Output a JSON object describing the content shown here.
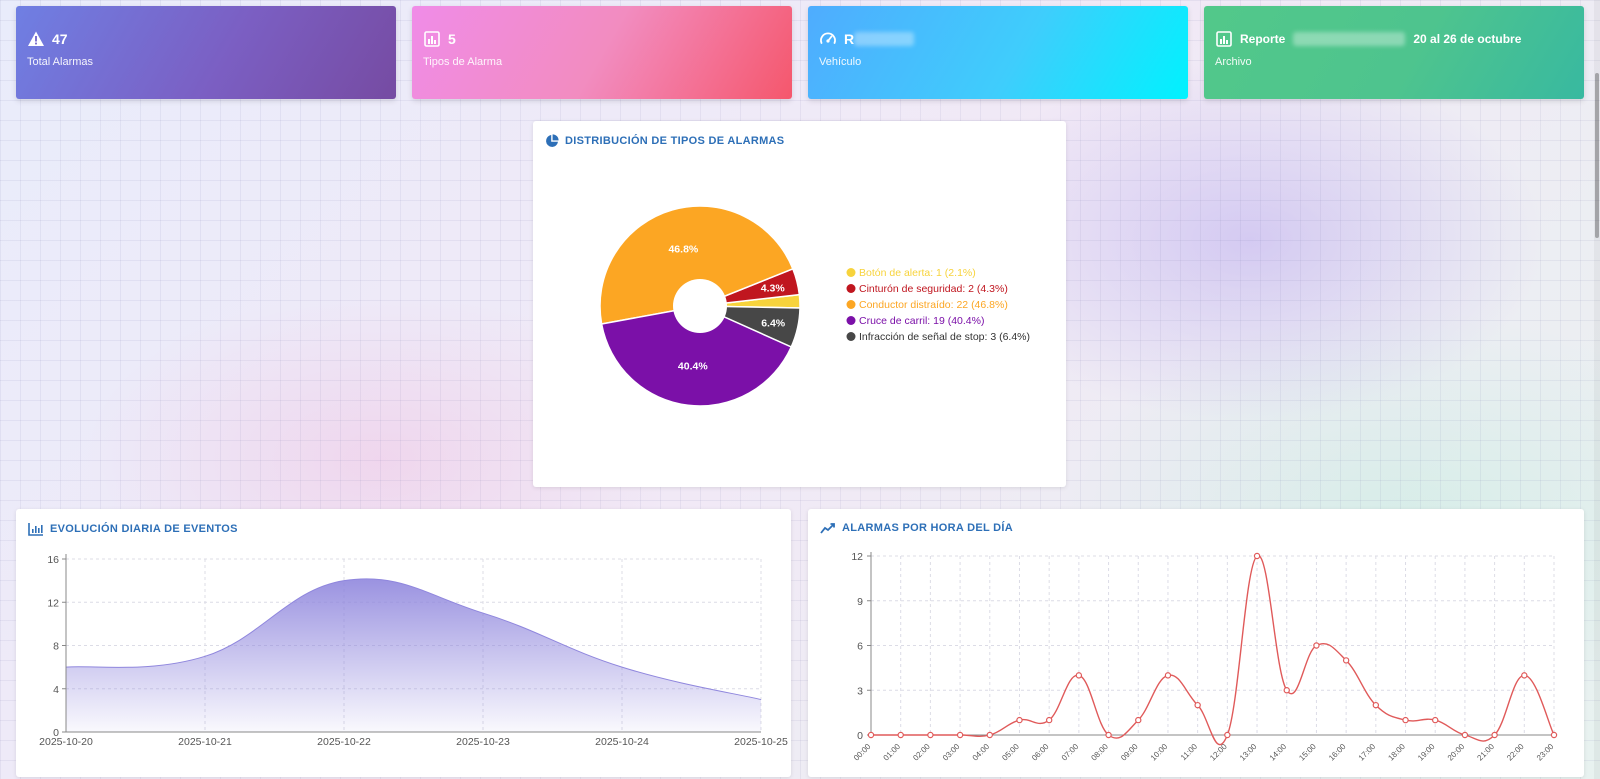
{
  "stats": {
    "total": {
      "icon": "warning-triangle-icon",
      "value": "47",
      "label": "Total Alarmas"
    },
    "types": {
      "icon": "bar-chart-icon",
      "value": "5",
      "label": "Tipos de Alarma"
    },
    "vehicle": {
      "icon": "gauge-icon",
      "value": "R",
      "label": "Vehículo"
    },
    "report": {
      "icon": "bar-chart-icon",
      "value_prefix": "Reporte",
      "value_suffix": "20 al 26 de octubre",
      "label": "Archivo"
    }
  },
  "colors": {
    "title": "#2d6fb7",
    "pie": [
      "#f7d33c",
      "#c0161f",
      "#fca623",
      "#7b10a8",
      "#474747"
    ],
    "area": "#8f86dd",
    "line": "#e05a5a"
  },
  "chart_data": [
    {
      "type": "pie",
      "title": "DISTRIBUCIÓN DE TIPOS DE ALARMAS",
      "legend_position": "right",
      "slices": [
        {
          "label": "Botón de alerta",
          "value": 1,
          "percent": 2.1,
          "legend": "Botón de alerta: 1 (2.1%)"
        },
        {
          "label": "Cinturón de seguridad",
          "value": 2,
          "percent": 4.3,
          "legend": "Cinturón de seguridad: 2 (4.3%)"
        },
        {
          "label": "Conductor distraído",
          "value": 22,
          "percent": 46.8,
          "legend": "Conductor distraído: 22 (46.8%)"
        },
        {
          "label": "Cruce de carril",
          "value": 19,
          "percent": 40.4,
          "legend": "Cruce de carril: 19 (40.4%)"
        },
        {
          "label": "Infracción de señal de stop",
          "value": 3,
          "percent": 6.4,
          "legend": "Infracción de señal de stop: 3 (6.4%)"
        }
      ],
      "data_labels": [
        "",
        "4.3%",
        "46.8%",
        "40.4%",
        "6.4%"
      ]
    },
    {
      "type": "area",
      "title": "EVOLUCIÓN DIARIA DE EVENTOS",
      "x": [
        "2025-10-20",
        "2025-10-21",
        "2025-10-22",
        "2025-10-23",
        "2025-10-24",
        "2025-10-25"
      ],
      "y": [
        6,
        7,
        14,
        11,
        6,
        3
      ],
      "ylim": [
        0,
        16
      ],
      "yticks": [
        0,
        4,
        8,
        12,
        16
      ],
      "grid": true
    },
    {
      "type": "line",
      "title": "ALARMAS POR HORA DEL DÍA",
      "x": [
        "00:00",
        "01:00",
        "02:00",
        "03:00",
        "04:00",
        "05:00",
        "06:00",
        "07:00",
        "08:00",
        "09:00",
        "10:00",
        "11:00",
        "12:00",
        "13:00",
        "14:00",
        "15:00",
        "16:00",
        "17:00",
        "18:00",
        "19:00",
        "20:00",
        "21:00",
        "22:00",
        "23:00"
      ],
      "y": [
        0,
        0,
        0,
        0,
        0,
        1,
        1,
        4,
        0,
        1,
        4,
        2,
        0,
        12,
        3,
        6,
        5,
        2,
        1,
        1,
        0,
        0,
        4,
        0
      ],
      "ylim": [
        0,
        12
      ],
      "yticks": [
        0,
        3,
        6,
        9,
        12
      ],
      "grid": true
    }
  ]
}
